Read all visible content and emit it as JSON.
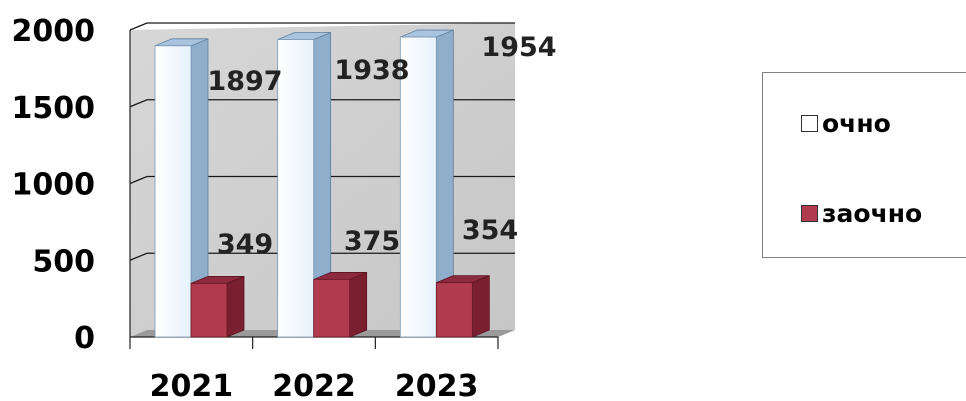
{
  "chart_data": {
    "type": "bar",
    "categories": [
      "2021",
      "2022",
      "2023"
    ],
    "series": [
      {
        "name": "очно",
        "values": [
          1897,
          1938,
          1954
        ],
        "color": "#ffffff"
      },
      {
        "name": "заочно",
        "values": [
          349,
          375,
          354
        ],
        "color": "#b03a4e"
      }
    ],
    "data_labels": [
      [
        "1897",
        "1938",
        "1954"
      ],
      [
        "349",
        "375",
        "354"
      ]
    ],
    "y_ticks": [
      "0",
      "500",
      "1000",
      "1500",
      "2000"
    ],
    "ylim": [
      0,
      2000
    ],
    "grid": true,
    "legend_position": "right"
  },
  "legend": {
    "items": [
      {
        "label": "очно",
        "color": "#ffffff"
      },
      {
        "label": "заочно",
        "color": "#b03a4e"
      }
    ]
  }
}
